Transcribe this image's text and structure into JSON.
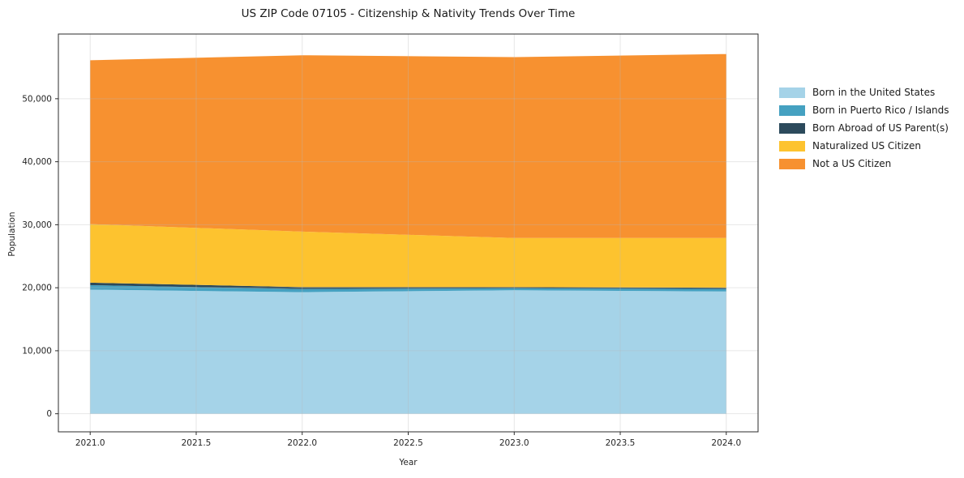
{
  "chart_data": {
    "type": "area",
    "stacked": true,
    "title": "US ZIP Code 07105 - Citizenship & Nativity Trends Over Time",
    "xlabel": "Year",
    "ylabel": "Population",
    "x": [
      2021,
      2022,
      2023,
      2024
    ],
    "series": [
      {
        "name": "Born in the United States",
        "color": "#a5d3e8",
        "values": [
          19700,
          19300,
          19600,
          19400
        ]
      },
      {
        "name": "Born in Puerto Rico / Islands",
        "color": "#45a1c1",
        "values": [
          700,
          500,
          300,
          400
        ]
      },
      {
        "name": "Born Abroad of US Parent(s)",
        "color": "#2c4a5c",
        "values": [
          400,
          300,
          200,
          200
        ]
      },
      {
        "name": "Naturalized US Citizen",
        "color": "#fdc32f",
        "values": [
          9300,
          8800,
          7800,
          7900
        ]
      },
      {
        "name": "Not a US Citizen",
        "color": "#f79130",
        "values": [
          26000,
          28000,
          28700,
          29200
        ]
      }
    ],
    "stacked_totals": [
      56100,
      56900,
      56600,
      57100
    ],
    "xticks": [
      2021.0,
      2021.5,
      2022.0,
      2022.5,
      2023.0,
      2023.5,
      2024.0
    ],
    "xtick_labels": [
      "2021.0",
      "2021.5",
      "2022.0",
      "2022.5",
      "2023.0",
      "2023.5",
      "2024.0"
    ],
    "yticks": [
      0,
      10000,
      20000,
      30000,
      40000,
      50000
    ],
    "ytick_labels": [
      "0",
      "10,000",
      "20,000",
      "30,000",
      "40,000",
      "50,000"
    ],
    "ylim": [
      0,
      57400
    ],
    "grid": true,
    "legend_position": "right outside"
  }
}
